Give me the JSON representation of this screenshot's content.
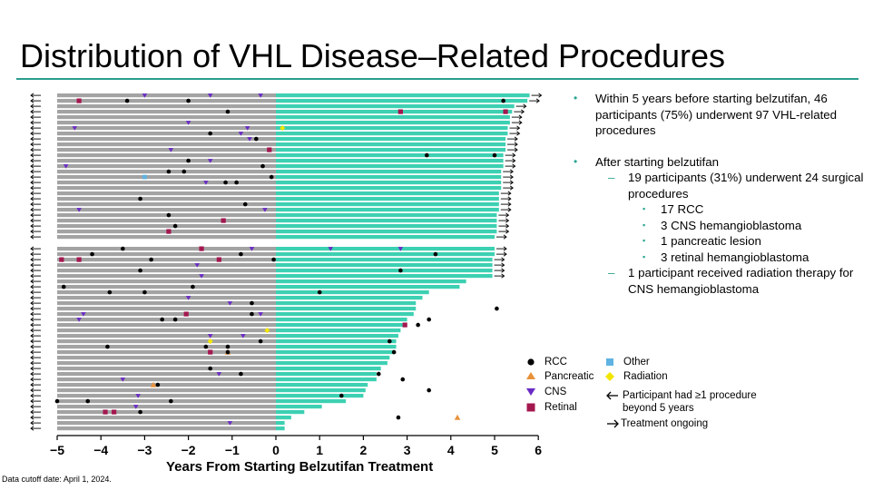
{
  "title": "Distribution of VHL Disease–Related Procedures",
  "bullets": {
    "b1": "Within 5 years before starting belzutifan, 46 participants (75%) underwent 97 VHL-related procedures",
    "b2": "After starting belzutifan",
    "b2a": "19 participants (31%) underwent 24 surgical procedures",
    "b2a_items": [
      "17 RCC",
      "3 CNS hemangioblastoma",
      "1 pancreatic lesion",
      "3 retinal hemangioblastoma"
    ],
    "b2b": "1 participant received radiation therapy for CNS hemangioblastoma",
    "markers": {
      "bullet": "•",
      "dash": "–",
      "square": "▪"
    }
  },
  "legend": {
    "rcc": "RCC",
    "pancreatic": "Pancreatic",
    "cns": "CNS",
    "retinal": "Retinal",
    "other": "Other",
    "radiation": "Radiation",
    "arrow_left": "Participant had ≥1 procedure beyond 5 years",
    "arrow_right": "Treatment ongoing"
  },
  "footnote": "Data cutoff date: April 1, 2024.",
  "colors": {
    "before": "#a3a3a3",
    "after": "#3dd0b2",
    "rcc": "#000000",
    "pancreatic": "#e8913a",
    "cns": "#6a2bc4",
    "retinal": "#a3174f",
    "other": "#5fb3e2",
    "radiation": "#f2e600",
    "accent": "#2a9d8f"
  },
  "chart_data": {
    "type": "swimmer",
    "xlabel": "Years From Starting Belzutifan Treatment",
    "xlim": [
      -5,
      6
    ],
    "xticks": [
      -5,
      -4,
      -3,
      -2,
      -1,
      0,
      1,
      2,
      3,
      4,
      5,
      6
    ],
    "xtick_labels": [
      "−5",
      "−4",
      "−3",
      "−2",
      "−1",
      "0",
      "1",
      "2",
      "3",
      "4",
      "5",
      "6"
    ],
    "participants": 61,
    "before_duration_years": 5,
    "after_duration_years": [
      5.8,
      5.75,
      5.45,
      5.4,
      5.35,
      5.35,
      5.3,
      5.3,
      5.25,
      5.25,
      5.25,
      5.2,
      5.2,
      5.2,
      5.15,
      5.15,
      5.15,
      5.15,
      5.1,
      5.1,
      5.1,
      5.1,
      5.05,
      5.05,
      5.05,
      5.05,
      5.0,
      5.0,
      5.0,
      4.95,
      4.95,
      4.95,
      4.95,
      4.35,
      4.2,
      3.5,
      3.35,
      3.2,
      3.2,
      3.15,
      3.0,
      2.95,
      2.85,
      2.8,
      2.75,
      2.75,
      2.7,
      2.6,
      2.55,
      2.4,
      2.3,
      2.3,
      2.1,
      2.05,
      2.0,
      1.6,
      1.05,
      0.65,
      0.35,
      0.2,
      0.2
    ],
    "treatment_ongoing": [
      0,
      1,
      2,
      3,
      4,
      5,
      6,
      7,
      8,
      9,
      10,
      11,
      12,
      13,
      14,
      15,
      16,
      17,
      18,
      19,
      20,
      21,
      22,
      23,
      24,
      25,
      26,
      27,
      28,
      29,
      30,
      31,
      32
    ],
    "procedure_beyond_5_years": [
      0,
      1,
      2,
      3,
      4,
      5,
      6,
      7,
      8,
      9,
      10,
      11,
      12,
      13,
      14,
      15,
      16,
      17,
      18,
      19,
      20,
      21,
      22,
      23,
      24,
      25,
      26,
      27,
      28,
      29,
      30,
      31,
      32,
      33,
      34,
      35,
      36,
      37,
      38,
      39,
      40,
      41,
      42,
      43,
      44,
      45,
      46,
      47,
      48,
      49,
      50,
      51,
      52,
      53,
      54,
      55,
      56,
      57,
      58,
      59,
      60
    ],
    "events": [
      {
        "row": 0,
        "t": -3.0,
        "type": "cns"
      },
      {
        "row": 0,
        "t": -1.5,
        "type": "cns"
      },
      {
        "row": 0,
        "t": -0.35,
        "type": "cns"
      },
      {
        "row": 1,
        "t": -4.5,
        "type": "retinal"
      },
      {
        "row": 1,
        "t": -3.4,
        "type": "rcc"
      },
      {
        "row": 1,
        "t": -2.0,
        "type": "rcc"
      },
      {
        "row": 1,
        "t": 5.2,
        "type": "rcc"
      },
      {
        "row": 3,
        "t": -1.1,
        "type": "rcc"
      },
      {
        "row": 3,
        "t": 2.85,
        "type": "retinal"
      },
      {
        "row": 3,
        "t": 5.25,
        "type": "retinal"
      },
      {
        "row": 5,
        "t": -2.0,
        "type": "cns"
      },
      {
        "row": 6,
        "t": -4.6,
        "type": "cns"
      },
      {
        "row": 6,
        "t": -0.65,
        "type": "cns"
      },
      {
        "row": 6,
        "t": 0.15,
        "type": "radiation"
      },
      {
        "row": 7,
        "t": -1.5,
        "type": "rcc"
      },
      {
        "row": 7,
        "t": -0.8,
        "type": "cns"
      },
      {
        "row": 8,
        "t": -0.6,
        "type": "cns"
      },
      {
        "row": 8,
        "t": -0.45,
        "type": "rcc"
      },
      {
        "row": 10,
        "t": -2.4,
        "type": "cns"
      },
      {
        "row": 10,
        "t": -0.15,
        "type": "retinal"
      },
      {
        "row": 11,
        "t": 3.45,
        "type": "rcc"
      },
      {
        "row": 11,
        "t": 5.0,
        "type": "rcc"
      },
      {
        "row": 12,
        "t": -2.0,
        "type": "rcc"
      },
      {
        "row": 12,
        "t": -1.5,
        "type": "cns"
      },
      {
        "row": 13,
        "t": -4.8,
        "type": "cns"
      },
      {
        "row": 13,
        "t": -0.3,
        "type": "rcc"
      },
      {
        "row": 14,
        "t": -2.45,
        "type": "rcc"
      },
      {
        "row": 14,
        "t": -2.1,
        "type": "rcc"
      },
      {
        "row": 15,
        "t": -3.0,
        "type": "other"
      },
      {
        "row": 15,
        "t": -0.1,
        "type": "rcc"
      },
      {
        "row": 16,
        "t": -1.6,
        "type": "cns"
      },
      {
        "row": 16,
        "t": -1.15,
        "type": "rcc"
      },
      {
        "row": 16,
        "t": -0.9,
        "type": "rcc"
      },
      {
        "row": 19,
        "t": -3.1,
        "type": "rcc"
      },
      {
        "row": 20,
        "t": -0.7,
        "type": "rcc"
      },
      {
        "row": 21,
        "t": -4.5,
        "type": "cns"
      },
      {
        "row": 21,
        "t": -0.25,
        "type": "cns"
      },
      {
        "row": 22,
        "t": -2.45,
        "type": "rcc"
      },
      {
        "row": 23,
        "t": -1.2,
        "type": "retinal"
      },
      {
        "row": 24,
        "t": -2.3,
        "type": "rcc"
      },
      {
        "row": 25,
        "t": -2.45,
        "type": "retinal"
      },
      {
        "row": 27,
        "t": -3.5,
        "type": "rcc"
      },
      {
        "row": 27,
        "t": -1.7,
        "type": "retinal"
      },
      {
        "row": 27,
        "t": -0.55,
        "type": "cns"
      },
      {
        "row": 27,
        "t": 1.25,
        "type": "cns"
      },
      {
        "row": 27,
        "t": 2.85,
        "type": "cns"
      },
      {
        "row": 28,
        "t": -4.2,
        "type": "rcc"
      },
      {
        "row": 28,
        "t": -0.8,
        "type": "rcc"
      },
      {
        "row": 28,
        "t": 3.65,
        "type": "rcc"
      },
      {
        "row": 29,
        "t": -4.9,
        "type": "retinal"
      },
      {
        "row": 29,
        "t": -4.5,
        "type": "retinal"
      },
      {
        "row": 29,
        "t": -2.85,
        "type": "rcc"
      },
      {
        "row": 29,
        "t": -1.3,
        "type": "retinal"
      },
      {
        "row": 29,
        "t": -0.05,
        "type": "rcc"
      },
      {
        "row": 30,
        "t": -1.8,
        "type": "cns"
      },
      {
        "row": 31,
        "t": -3.1,
        "type": "rcc"
      },
      {
        "row": 31,
        "t": 2.85,
        "type": "rcc"
      },
      {
        "row": 32,
        "t": -1.7,
        "type": "cns"
      },
      {
        "row": 34,
        "t": -4.85,
        "type": "rcc"
      },
      {
        "row": 34,
        "t": -1.9,
        "type": "rcc"
      },
      {
        "row": 35,
        "t": -3.8,
        "type": "rcc"
      },
      {
        "row": 35,
        "t": -3.0,
        "type": "rcc"
      },
      {
        "row": 35,
        "t": 1.0,
        "type": "rcc"
      },
      {
        "row": 36,
        "t": -2.0,
        "type": "cns"
      },
      {
        "row": 37,
        "t": -1.05,
        "type": "cns"
      },
      {
        "row": 37,
        "t": -0.55,
        "type": "rcc"
      },
      {
        "row": 38,
        "t": 5.05,
        "type": "rcc"
      },
      {
        "row": 39,
        "t": -4.4,
        "type": "cns"
      },
      {
        "row": 39,
        "t": -2.05,
        "type": "retinal"
      },
      {
        "row": 39,
        "t": -0.55,
        "type": "rcc"
      },
      {
        "row": 39,
        "t": -0.35,
        "type": "cns"
      },
      {
        "row": 40,
        "t": -4.5,
        "type": "cns"
      },
      {
        "row": 40,
        "t": -2.6,
        "type": "rcc"
      },
      {
        "row": 40,
        "t": -2.3,
        "type": "rcc"
      },
      {
        "row": 40,
        "t": 3.5,
        "type": "rcc"
      },
      {
        "row": 41,
        "t": 2.95,
        "type": "retinal"
      },
      {
        "row": 41,
        "t": 3.25,
        "type": "rcc"
      },
      {
        "row": 42,
        "t": -0.2,
        "type": "radiation"
      },
      {
        "row": 43,
        "t": -1.5,
        "type": "cns"
      },
      {
        "row": 43,
        "t": -0.75,
        "type": "cns"
      },
      {
        "row": 44,
        "t": -1.5,
        "type": "radiation"
      },
      {
        "row": 44,
        "t": -0.35,
        "type": "rcc"
      },
      {
        "row": 44,
        "t": 2.6,
        "type": "rcc"
      },
      {
        "row": 45,
        "t": -3.85,
        "type": "rcc"
      },
      {
        "row": 45,
        "t": -1.6,
        "type": "rcc"
      },
      {
        "row": 45,
        "t": -1.1,
        "type": "rcc"
      },
      {
        "row": 46,
        "t": -1.5,
        "type": "retinal"
      },
      {
        "row": 46,
        "t": -1.1,
        "type": "pancreatic"
      },
      {
        "row": 46,
        "t": -1.1,
        "type": "rcc"
      },
      {
        "row": 46,
        "t": 2.7,
        "type": "rcc"
      },
      {
        "row": 49,
        "t": -1.5,
        "type": "rcc"
      },
      {
        "row": 50,
        "t": -1.3,
        "type": "cns"
      },
      {
        "row": 50,
        "t": -0.8,
        "type": "rcc"
      },
      {
        "row": 50,
        "t": 2.35,
        "type": "rcc"
      },
      {
        "row": 51,
        "t": -3.5,
        "type": "cns"
      },
      {
        "row": 51,
        "t": 2.9,
        "type": "rcc"
      },
      {
        "row": 52,
        "t": -2.8,
        "type": "pancreatic"
      },
      {
        "row": 52,
        "t": -2.7,
        "type": "rcc"
      },
      {
        "row": 53,
        "t": 3.5,
        "type": "rcc"
      },
      {
        "row": 54,
        "t": -3.15,
        "type": "cns"
      },
      {
        "row": 54,
        "t": 1.5,
        "type": "rcc"
      },
      {
        "row": 55,
        "t": -5.0,
        "type": "rcc"
      },
      {
        "row": 55,
        "t": -4.3,
        "type": "rcc"
      },
      {
        "row": 55,
        "t": -2.4,
        "type": "rcc"
      },
      {
        "row": 56,
        "t": -3.2,
        "type": "cns"
      },
      {
        "row": 57,
        "t": -3.9,
        "type": "retinal"
      },
      {
        "row": 57,
        "t": -3.7,
        "type": "retinal"
      },
      {
        "row": 57,
        "t": -3.1,
        "type": "rcc"
      },
      {
        "row": 58,
        "t": 2.8,
        "type": "rcc"
      },
      {
        "row": 58,
        "t": 4.15,
        "type": "pancreatic"
      },
      {
        "row": 59,
        "t": -1.05,
        "type": "cns"
      }
    ]
  }
}
